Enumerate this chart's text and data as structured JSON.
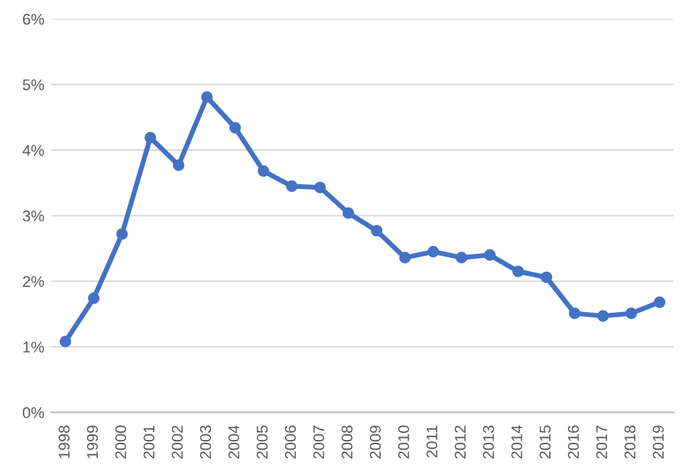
{
  "chart_data": {
    "type": "line",
    "categories": [
      "1998",
      "1999",
      "2000",
      "2001",
      "2002",
      "2003",
      "2004",
      "2005",
      "2006",
      "2007",
      "2008",
      "2009",
      "2010",
      "2011",
      "2012",
      "2013",
      "2014",
      "2015",
      "2016",
      "2017",
      "2018",
      "2019"
    ],
    "series": [
      {
        "color": "#4472c4",
        "values": [
          1.08,
          1.74,
          2.72,
          4.19,
          3.77,
          4.81,
          4.34,
          3.68,
          3.45,
          3.43,
          3.04,
          2.77,
          2.36,
          2.45,
          2.36,
          2.4,
          2.15,
          2.06,
          1.51,
          1.47,
          1.51,
          1.68
        ]
      }
    ],
    "ylim": [
      0,
      6
    ],
    "yticks": [
      {
        "value": 0,
        "label": "0%"
      },
      {
        "value": 1,
        "label": "1%"
      },
      {
        "value": 2,
        "label": "2%"
      },
      {
        "value": 3,
        "label": "3%"
      },
      {
        "value": 4,
        "label": "4%"
      },
      {
        "value": 5,
        "label": "5%"
      },
      {
        "value": 6,
        "label": "6%"
      }
    ],
    "grid": "y",
    "marker": "circle",
    "line_style": "solid",
    "legend": false
  }
}
